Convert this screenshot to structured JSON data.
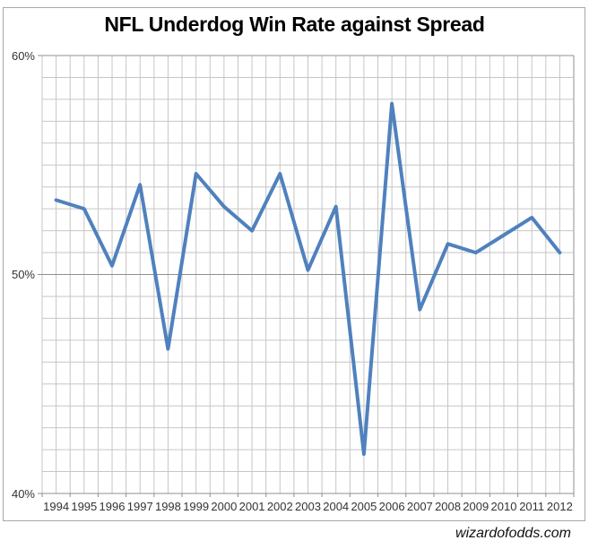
{
  "page": {
    "watermark": "wizardofodds.com"
  },
  "chart_data": {
    "type": "line",
    "title": "NFL Underdog Win Rate against Spread",
    "categories": [
      "1994",
      "1995",
      "1996",
      "1997",
      "1998",
      "1999",
      "2000",
      "2001",
      "2002",
      "2003",
      "2004",
      "2005",
      "2006",
      "2007",
      "2008",
      "2009",
      "2010",
      "2011",
      "2012"
    ],
    "values": [
      53.4,
      53.0,
      50.4,
      54.1,
      46.6,
      54.6,
      53.1,
      52.0,
      54.6,
      50.2,
      53.1,
      41.8,
      57.8,
      48.4,
      51.4,
      51.0,
      51.8,
      52.6,
      51.0
    ],
    "xlabel": "",
    "ylabel": "",
    "ylim": [
      40,
      60
    ],
    "y_ticks": [
      {
        "label": "60%",
        "value": 60
      },
      {
        "label": "50%",
        "value": 50
      },
      {
        "label": "40%",
        "value": 40
      }
    ],
    "grid": "horizontal minor every 1%, vertical minor every half category; major lines at 10% intervals",
    "legend": "none",
    "line_color": "#4f81bd"
  }
}
